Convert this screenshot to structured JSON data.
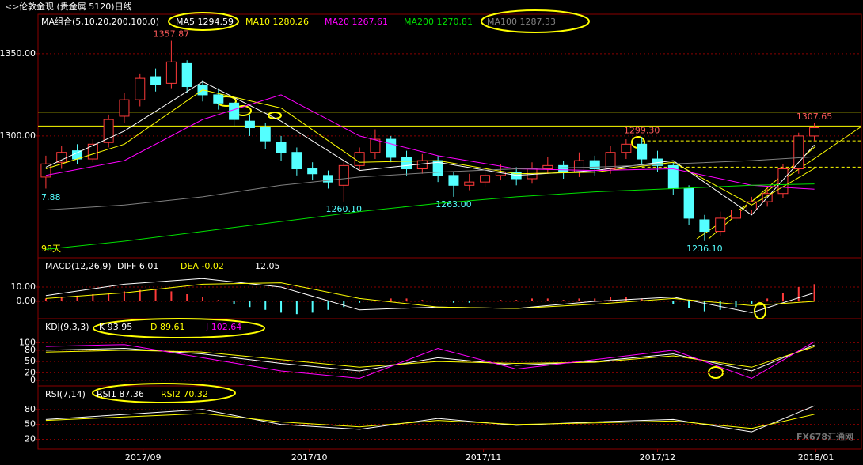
{
  "title": "伦敦金现 (贵金属 5120)日线",
  "watermark": "FX678汇通网",
  "edge_labels": [
    "7.88",
    "98天"
  ],
  "chart_data": [
    {
      "type": "candlestick",
      "header": "MA组合(5,10,20,200,100,0)",
      "xlim": [
        -0.5,
        52
      ],
      "ylim": [
        1226.4,
        1374
      ],
      "yticks": [
        {
          "value": 1300,
          "label": "1300.00"
        },
        {
          "value": 1350,
          "label": "1350.00"
        }
      ],
      "grid": true,
      "up_color": "#ff3a3a",
      "down_color": "#54ffff",
      "open": [
        1275,
        1284,
        1291,
        1286,
        1296,
        1312,
        1322,
        1336,
        1332,
        1344,
        1331,
        1325,
        1320,
        1309,
        1305,
        1296,
        1290,
        1280,
        1276,
        1270,
        1282,
        1290,
        1298,
        1287,
        1280,
        1285,
        1276,
        1270,
        1272,
        1276,
        1278,
        1274,
        1280,
        1282,
        1278,
        1285,
        1280,
        1290,
        1295,
        1286,
        1282,
        1268,
        1249,
        1242,
        1250,
        1255,
        1260,
        1265,
        1280,
        1300
      ],
      "high": [
        1288,
        1294,
        1295,
        1298,
        1313,
        1326,
        1338,
        1341,
        1357.87,
        1346,
        1334,
        1329,
        1323,
        1313,
        1308,
        1300,
        1293,
        1284,
        1279,
        1285,
        1293,
        1304,
        1300,
        1291,
        1289,
        1288,
        1278,
        1277,
        1281,
        1283,
        1281,
        1284,
        1287,
        1285,
        1290,
        1288,
        1294,
        1298,
        1299.3,
        1291,
        1284,
        1270,
        1252,
        1254,
        1258,
        1263,
        1268,
        1283,
        1302,
        1307.65
      ],
      "low": [
        1268,
        1280,
        1283,
        1284,
        1293,
        1308,
        1318,
        1327,
        1329,
        1326,
        1321,
        1316,
        1306,
        1300,
        1292,
        1285,
        1276,
        1273,
        1268,
        1260.1,
        1279,
        1286,
        1284,
        1276,
        1277,
        1272,
        1263,
        1267,
        1269,
        1273,
        1270,
        1271,
        1277,
        1274,
        1275,
        1276,
        1277,
        1286,
        1283,
        1278,
        1264,
        1246,
        1236.1,
        1239,
        1246,
        1252,
        1257,
        1262,
        1277,
        1297
      ],
      "close": [
        1283,
        1290,
        1286,
        1295,
        1310,
        1322,
        1335,
        1331,
        1345,
        1330,
        1325,
        1320,
        1310,
        1305,
        1297,
        1290,
        1280,
        1277,
        1272,
        1282,
        1290,
        1298,
        1287,
        1280,
        1285,
        1276,
        1270,
        1272,
        1276,
        1278,
        1274,
        1280,
        1282,
        1278,
        1285,
        1280,
        1290,
        1295,
        1286,
        1282,
        1268,
        1250,
        1242,
        1250,
        1255,
        1260,
        1265,
        1280,
        1300,
        1305
      ],
      "series": [
        {
          "name": "MA5",
          "readout": 1294.59,
          "color": "#ffffff",
          "x": [
            0,
            5,
            10,
            15,
            20,
            25,
            30,
            35,
            40,
            45,
            49
          ],
          "values": [
            1281,
            1303,
            1333,
            1309,
            1279,
            1284,
            1276,
            1279,
            1285,
            1252,
            1294.59
          ]
        },
        {
          "name": "MA10",
          "readout": 1280.26,
          "color": "#ffff00",
          "x": [
            0,
            5,
            10,
            15,
            20,
            25,
            30,
            35,
            40,
            45,
            49
          ],
          "values": [
            1280,
            1295,
            1328,
            1317,
            1284,
            1285,
            1277,
            1278,
            1284,
            1258,
            1280.26
          ]
        },
        {
          "name": "MA20",
          "readout": 1267.61,
          "color": "#ff00ff",
          "x": [
            0,
            5,
            10,
            15,
            20,
            25,
            30,
            35,
            40,
            45,
            49
          ],
          "values": [
            1276,
            1285,
            1310,
            1325,
            1300,
            1288,
            1280,
            1279,
            1280,
            1270,
            1267.61
          ]
        },
        {
          "name": "MA200",
          "readout": 1270.81,
          "color": "#00e000",
          "x": [
            0,
            5,
            10,
            15,
            20,
            25,
            30,
            35,
            40,
            45,
            49
          ],
          "values": [
            1231,
            1236,
            1242,
            1248,
            1254,
            1259,
            1263,
            1266,
            1268,
            1270,
            1270.81
          ]
        },
        {
          "name": "MA100",
          "readout": 1287.33,
          "color": "#808080",
          "x": [
            0,
            5,
            10,
            15,
            20,
            25,
            30,
            35,
            40,
            45,
            49
          ],
          "values": [
            1255,
            1258,
            1263,
            1270,
            1275,
            1278,
            1280,
            1281,
            1283,
            1285,
            1287.33
          ]
        }
      ],
      "levels": [
        {
          "value": 1314.5,
          "style": "solid",
          "from": -0.5
        },
        {
          "value": 1306,
          "style": "solid",
          "from": -0.5
        },
        {
          "value": 1297,
          "style": "dashed",
          "from": 38
        },
        {
          "value": 1281,
          "style": "dashed",
          "from": 38
        }
      ],
      "annotations": [
        {
          "label": "1357.87",
          "index": 8,
          "value": 1357.87
        },
        {
          "label": "1299.30",
          "index": 38,
          "value": 1299.3
        },
        {
          "label": "1307.65",
          "index": 49,
          "value": 1307.65
        },
        {
          "label": "1260.10",
          "index": 19,
          "value": 1260.1
        },
        {
          "label": "1263.00",
          "index": 26,
          "value": 1263
        },
        {
          "label": "1236.10",
          "index": 42,
          "value": 1236.1
        }
      ]
    },
    {
      "type": "macd",
      "header": "MACD(12,26,9)",
      "xlim": [
        -0.5,
        52
      ],
      "ylim": [
        -11.67,
        30
      ],
      "yticks": [
        {
          "value": 0,
          "label": "0.00"
        },
        {
          "value": 10,
          "label": "10.00"
        }
      ],
      "grid": true,
      "bars": {
        "readout": 12.05,
        "values": [
          2,
          3,
          4,
          5,
          6,
          7,
          8,
          8,
          7,
          5,
          3,
          1,
          -2,
          -4,
          -6,
          -8,
          -9,
          -8,
          -6,
          -4,
          -1,
          1,
          2,
          2,
          1,
          0,
          -1,
          -1,
          0,
          1,
          1,
          2,
          2,
          1,
          2,
          2,
          3,
          3,
          2,
          0,
          -2,
          -5,
          -7,
          -6,
          -4,
          -2,
          2,
          6,
          10,
          12.05
        ]
      },
      "series": [
        {
          "name": "DIFF",
          "readout": 6.01,
          "color": "#ffffff",
          "x": [
            0,
            5,
            10,
            15,
            20,
            25,
            30,
            35,
            40,
            45,
            49
          ],
          "values": [
            4,
            12,
            16,
            10,
            -6,
            -4,
            -5,
            0,
            3,
            -8,
            6.01
          ]
        },
        {
          "name": "DEA",
          "readout": -0.02,
          "color": "#ffff00",
          "x": [
            0,
            5,
            10,
            15,
            20,
            25,
            30,
            35,
            40,
            45,
            49
          ],
          "values": [
            2,
            6,
            12,
            13,
            2,
            -4,
            -5,
            -2,
            2,
            -3,
            -0.02
          ]
        }
      ]
    },
    {
      "type": "line",
      "header": "KDJ(9,3,3)",
      "xlim": [
        -0.5,
        52
      ],
      "ylim": [
        -12.8,
        161.7
      ],
      "yticks": [
        0,
        20,
        50,
        80,
        100
      ],
      "grid": true,
      "series": [
        {
          "name": "K",
          "readout": 93.95,
          "color": "#ffffff",
          "x": [
            0,
            5,
            10,
            15,
            20,
            25,
            30,
            35,
            40,
            45,
            49
          ],
          "values": [
            80,
            85,
            70,
            45,
            25,
            60,
            40,
            50,
            70,
            25,
            93.95
          ]
        },
        {
          "name": "D",
          "readout": 89.61,
          "color": "#ffff00",
          "x": [
            0,
            5,
            10,
            15,
            20,
            25,
            30,
            35,
            40,
            45,
            49
          ],
          "values": [
            75,
            80,
            75,
            55,
            35,
            50,
            45,
            48,
            65,
            35,
            89.61
          ]
        },
        {
          "name": "J",
          "readout": 102.64,
          "color": "#ff00ff",
          "x": [
            0,
            5,
            10,
            15,
            20,
            25,
            30,
            35,
            40,
            45,
            49
          ],
          "values": [
            90,
            95,
            60,
            25,
            5,
            85,
            30,
            55,
            80,
            5,
            102.64
          ]
        }
      ]
    },
    {
      "type": "line",
      "header": "RSI(7,14)",
      "xlim": [
        -0.5,
        52
      ],
      "ylim": [
        0,
        126
      ],
      "yticks": [
        20,
        50,
        80
      ],
      "grid": true,
      "xticks": [
        {
          "value": 6.2,
          "label": "2017/09"
        },
        {
          "value": 16.8,
          "label": "2017/10"
        },
        {
          "value": 27.9,
          "label": "2017/11"
        },
        {
          "value": 39,
          "label": "2017/12"
        },
        {
          "value": 49.1,
          "label": "2018/01"
        }
      ],
      "series": [
        {
          "name": "RSI1",
          "readout": 87.36,
          "color": "#ffffff",
          "x": [
            0,
            5,
            10,
            15,
            20,
            25,
            30,
            35,
            40,
            45,
            49
          ],
          "values": [
            60,
            70,
            80,
            50,
            40,
            62,
            48,
            55,
            60,
            35,
            87.36
          ]
        },
        {
          "name": "RSI2",
          "readout": 70.32,
          "color": "#ffff00",
          "x": [
            0,
            5,
            10,
            15,
            20,
            25,
            30,
            35,
            40,
            45,
            49
          ],
          "values": [
            58,
            65,
            72,
            55,
            45,
            58,
            50,
            53,
            57,
            42,
            70.32
          ]
        }
      ]
    }
  ]
}
